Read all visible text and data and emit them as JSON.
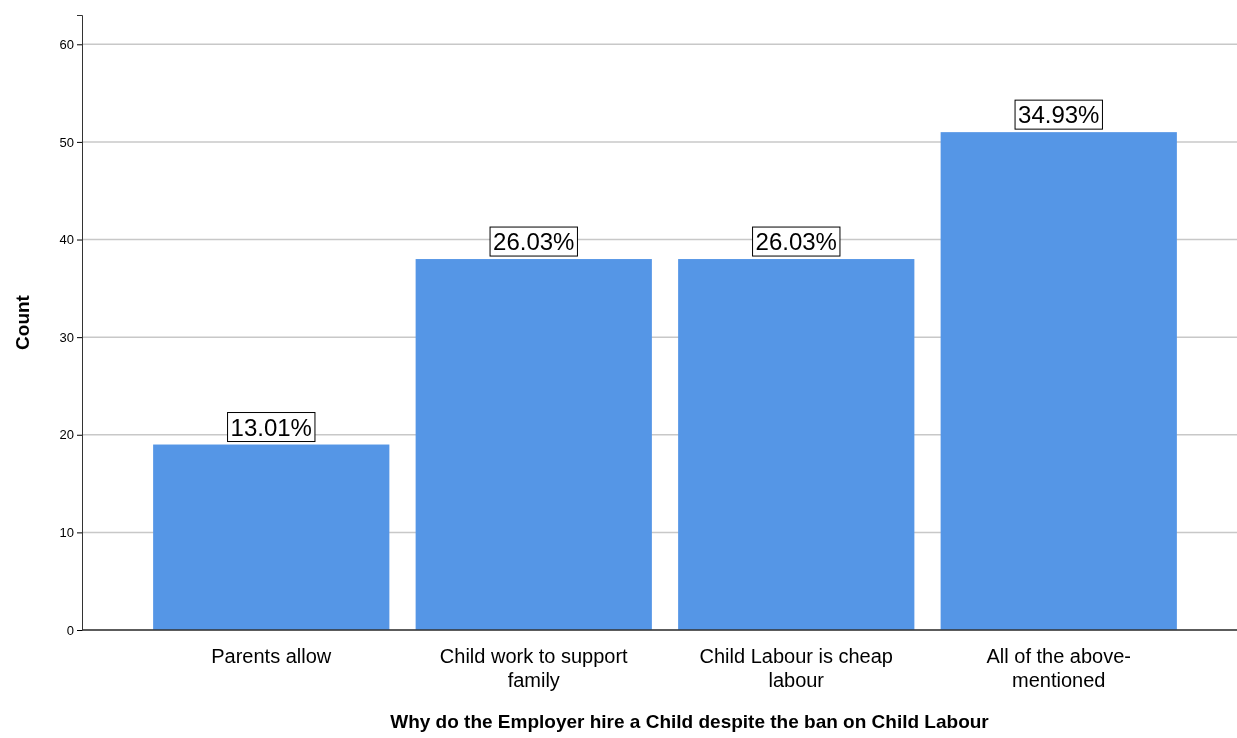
{
  "chart_data": {
    "type": "bar",
    "xlabel": "Why do the Employer hire a Child despite the ban on Child Labour",
    "ylabel": "Count",
    "categories": [
      "Parents allow",
      "Child work to support family",
      "Child Labour is cheap labour",
      "All of the above-mentioned"
    ],
    "values": [
      19,
      38,
      38,
      51
    ],
    "annotations": [
      {
        "text": "13.01%",
        "x": "Parents allow",
        "y": 19
      },
      {
        "text": "26.03%",
        "x": "Child work to support family",
        "y": 38
      },
      {
        "text": "26.03%",
        "x": "Child Labour is cheap labour",
        "y": 38
      },
      {
        "text": "34.93%",
        "x": "All of the above-mentioned",
        "y": 51
      }
    ],
    "color": "#5596e6",
    "ylim": [
      0,
      63
    ],
    "yticks": [
      0,
      10,
      20,
      30,
      40,
      50,
      60
    ],
    "grid": "y"
  }
}
